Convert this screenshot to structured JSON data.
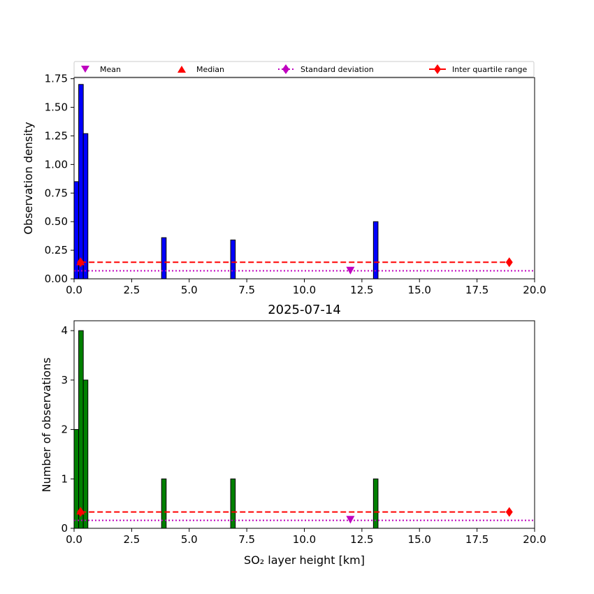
{
  "chart_data": [
    {
      "type": "bar",
      "panel": "density",
      "title": "",
      "xlabel": "",
      "ylabel": "Observation density",
      "xlim": [
        0,
        20
      ],
      "ylim": [
        0,
        1.76
      ],
      "bar_color": "#0000ff",
      "xticks": [
        "0.0",
        "2.5",
        "5.0",
        "7.5",
        "10.0",
        "12.5",
        "15.0",
        "17.5",
        "20.0"
      ],
      "yticks": [
        "0.00",
        "0.25",
        "0.50",
        "0.75",
        "1.00",
        "1.25",
        "1.50",
        "1.75"
      ],
      "bin_width": 0.2,
      "bars": [
        {
          "x0": 0.0,
          "x1": 0.2,
          "value": 0.85
        },
        {
          "x0": 0.2,
          "x1": 0.4,
          "value": 1.7
        },
        {
          "x0": 0.4,
          "x1": 0.6,
          "value": 1.27
        },
        {
          "x0": 3.8,
          "x1": 4.0,
          "value": 0.36
        },
        {
          "x0": 6.8,
          "x1": 7.0,
          "value": 0.34
        },
        {
          "x0": 13.0,
          "x1": 13.2,
          "value": 0.5
        }
      ],
      "stats": {
        "mean": {
          "x": 12.0,
          "y": 0.075
        },
        "median": {
          "x": 0.28,
          "y": 0.15
        },
        "std_line": {
          "x0": 0.0,
          "x1": 20.0,
          "y": 0.07
        },
        "iqr": {
          "x0": 0.28,
          "x1": 18.9,
          "y": 0.145
        }
      }
    },
    {
      "type": "bar",
      "panel": "counts",
      "title": "2025-07-14",
      "xlabel": "SO₂ layer height [km]",
      "ylabel": "Number of observations",
      "xlim": [
        0,
        20
      ],
      "ylim": [
        0,
        4.2
      ],
      "bar_color": "#008000",
      "xticks": [
        "0.0",
        "2.5",
        "5.0",
        "7.5",
        "10.0",
        "12.5",
        "15.0",
        "17.5",
        "20.0"
      ],
      "yticks": [
        "0",
        "1",
        "2",
        "3",
        "4"
      ],
      "bin_width": 0.2,
      "bars": [
        {
          "x0": 0.0,
          "x1": 0.2,
          "value": 2
        },
        {
          "x0": 0.2,
          "x1": 0.4,
          "value": 4
        },
        {
          "x0": 0.4,
          "x1": 0.6,
          "value": 3
        },
        {
          "x0": 3.8,
          "x1": 4.0,
          "value": 1
        },
        {
          "x0": 6.8,
          "x1": 7.0,
          "value": 1
        },
        {
          "x0": 13.0,
          "x1": 13.2,
          "value": 1
        }
      ],
      "stats": {
        "mean": {
          "x": 12.0,
          "y": 0.18
        },
        "median": {
          "x": 0.28,
          "y": 0.35
        },
        "std_line": {
          "x0": 0.0,
          "x1": 20.0,
          "y": 0.16
        },
        "iqr": {
          "x0": 0.28,
          "x1": 18.9,
          "y": 0.33
        }
      }
    }
  ],
  "legend": {
    "location": "above top panel",
    "entries": [
      {
        "label": "Mean",
        "marker": "triangle-down",
        "color": "#bf00bf"
      },
      {
        "label": "Median",
        "marker": "triangle-up",
        "color": "#ff0000"
      },
      {
        "label": "Standard deviation",
        "marker": "diamond-dotted-line",
        "color": "#bf00bf"
      },
      {
        "label": "Inter quartile range",
        "marker": "diamond-dashed-line",
        "color": "#ff0000"
      }
    ]
  }
}
